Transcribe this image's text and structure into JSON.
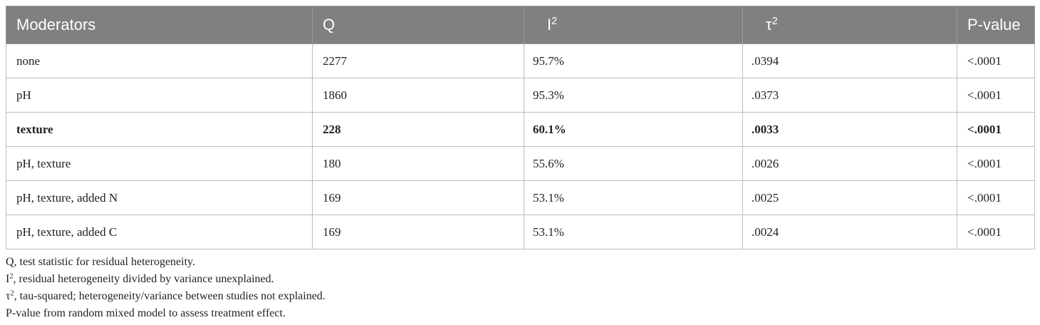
{
  "table": {
    "header": [
      {
        "text": "Moderators"
      },
      {
        "text": "Q"
      },
      {
        "text": "I",
        "sup": "2"
      },
      {
        "text": "τ",
        "sup": "2"
      },
      {
        "text": "P-value"
      }
    ],
    "rows": [
      {
        "cells": [
          "none",
          "2277",
          "95.7%",
          ".0394",
          "<.0001"
        ],
        "bold": false
      },
      {
        "cells": [
          "pH",
          "1860",
          "95.3%",
          ".0373",
          "<.0001"
        ],
        "bold": false
      },
      {
        "cells": [
          "texture",
          "228",
          "60.1%",
          ".0033",
          "<.0001"
        ],
        "bold": true
      },
      {
        "cells": [
          "pH, texture",
          "180",
          "55.6%",
          ".0026",
          "<.0001"
        ],
        "bold": false
      },
      {
        "cells": [
          "pH, texture, added N",
          "169",
          "53.1%",
          ".0025",
          "<.0001"
        ],
        "bold": false
      },
      {
        "cells": [
          "pH, texture, added C",
          "169",
          "53.1%",
          ".0024",
          "<.0001"
        ],
        "bold": false
      }
    ]
  },
  "footnotes": [
    {
      "text": "Q, test statistic for residual heterogeneity."
    },
    {
      "symbol": "I",
      "sup": "2",
      "text": ", residual heterogeneity divided by variance unexplained."
    },
    {
      "symbol": "τ",
      "sup": "2",
      "text": ", tau-squared; heterogeneity/variance between studies not explained."
    },
    {
      "text": "P-value from random mixed model to assess treatment effect."
    }
  ]
}
